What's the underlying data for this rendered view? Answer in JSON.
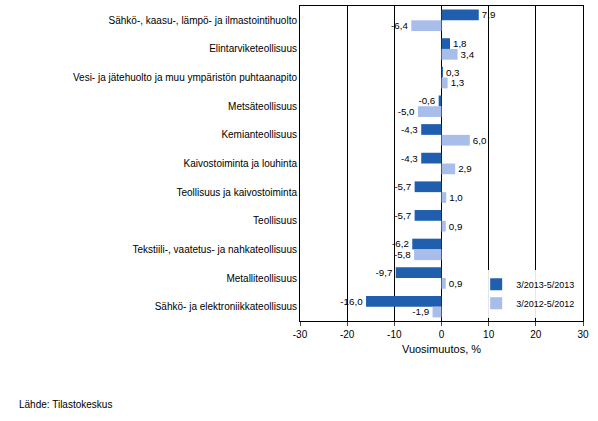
{
  "chart_data": {
    "type": "bar",
    "orientation": "horizontal",
    "categories": [
      "Sähkö-, kaasu-, lämpö- ja ilmastointihuolto",
      "Elintarviketeollisuus",
      "Vesi- ja jätehuolto ja muu ympäristön puhtaanapito",
      "Metsäteollisuus",
      "Kemianteollisuus",
      "Kaivostoiminta ja louhinta",
      "Teollisuus ja kaivostoiminta",
      "Teollisuus",
      "Tekstiili-, vaatetus- ja nahkateollisuus",
      "Metalliteollisuus",
      "Sähkö- ja elektroniikkateollisuus"
    ],
    "series": [
      {
        "name": "3/2013-5/2013",
        "color": "#1f5fae",
        "values": [
          7.9,
          1.8,
          0.3,
          -0.6,
          -4.3,
          -4.3,
          -5.7,
          -5.7,
          -6.2,
          -9.7,
          -16.0
        ],
        "value_labels": [
          "7,9",
          "1,8",
          "0,3",
          "-0,6",
          "-4,3",
          "-4,3",
          "-5,7",
          "-5,7",
          "-6,2",
          "-9,7",
          "-16,0"
        ]
      },
      {
        "name": "3/2012-5/2012",
        "color": "#a9bdea",
        "values": [
          -6.4,
          3.4,
          1.3,
          -5.0,
          6.0,
          2.9,
          1.0,
          0.9,
          -5.8,
          0.9,
          -1.9
        ],
        "value_labels": [
          "-6,4",
          "3,4",
          "1,3",
          "-5,0",
          "6,0",
          "2,9",
          "1,0",
          "0,9",
          "-5,8",
          "0,9",
          "-1,9"
        ]
      }
    ],
    "x_label": "Vuosimuutos, %",
    "xlim": [
      -30,
      30
    ],
    "xticks": [
      -30,
      -20,
      -10,
      0,
      10,
      20,
      30
    ],
    "grid": true,
    "data_labels": true,
    "legend": "lower right",
    "annotations": [
      "Lähde: Tilastokeskus"
    ]
  }
}
